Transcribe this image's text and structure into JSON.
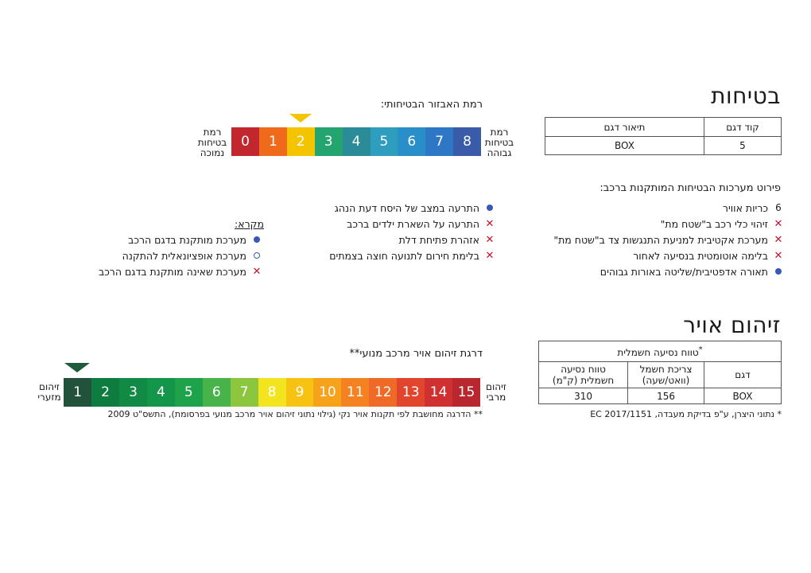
{
  "safety": {
    "title": "בטיחות",
    "model_table": {
      "col_code": "קוד דגם",
      "col_desc": "תיאור דגם",
      "code": "5",
      "desc": "BOX"
    },
    "scale_title": "רמת האבזור הבטיחותי:",
    "scale_high": "רמת\nבטיחות\nגבוהה",
    "scale_low": "רמת\nבטיחות\nנמוכה",
    "scale_values": [
      "8",
      "7",
      "6",
      "5",
      "4",
      "3",
      "2",
      "1",
      "0"
    ],
    "scale_colors": [
      "#3a5ba7",
      "#2e77c4",
      "#2a8ec9",
      "#2f9dbe",
      "#2b8b96",
      "#24a46e",
      "#f5c400",
      "#f06a1c",
      "#c1272d"
    ],
    "selected_level": 2,
    "features_title": "פירוט מערכות הבטיחות המותקנות ברכב:",
    "features_col1": [
      {
        "mark": "6",
        "text": "כריות אוויר"
      },
      {
        "mark": "x",
        "text": "זיהוי כלי רכב ב\"שטח מת\""
      },
      {
        "mark": "x",
        "text": "מערכת אקטיבית למניעת התנגשות צד ב\"שטח מת\""
      },
      {
        "mark": "x",
        "text": "בלימה אוטומטית בנסיעה לאחור"
      },
      {
        "mark": "dot",
        "text": "תאורה אדפטיבית/שליטה באורות גבוהים"
      }
    ],
    "features_col2": [
      {
        "mark": "dot",
        "text": "התרעה במצב של היסח דעת הנהג"
      },
      {
        "mark": "x",
        "text": "התרעה על השארת ילדים ברכב"
      },
      {
        "mark": "x",
        "text": "אזהרת פתיחת דלת"
      },
      {
        "mark": "x",
        "text": "בלימת חירום לתנועה חוצה בצמתים"
      }
    ],
    "legend": {
      "title": "מקרא:",
      "installed": "מערכת מותקנת בדגם הרכב",
      "optional": "מערכת אופציונאלית להתקנה",
      "not_installed": "מערכת שאינה מותקנת בדגם הרכב"
    }
  },
  "pollution": {
    "title": "זיהום אויר",
    "range_table": {
      "header": "טווח נסיעה חשמלית",
      "header_mark": "*",
      "col_model": "דגם",
      "col_consumption": "צריכת חשמל\n(וואט/שעה)",
      "col_range": "טווח נסיעה\nחשמלית (ק\"מ)",
      "model": "BOX",
      "consumption": "156",
      "range": "310"
    },
    "footnote_table": "* נתוני היצרן, ע\"פ בדיקת מעבדה, EC 2017/1151",
    "scale_title": "דרגת זיהום אויר מרכב מנועי**",
    "scale_max_label": "זיהום\nמרבי",
    "scale_min_label": "זיהום\nמזערי",
    "scale_values": [
      "15",
      "14",
      "13",
      "12",
      "11",
      "10",
      "9",
      "8",
      "7",
      "6",
      "5",
      "4",
      "3",
      "2",
      "1"
    ],
    "scale_colors": [
      "#b8262e",
      "#d0302f",
      "#e2452e",
      "#ef6a26",
      "#f58220",
      "#f7a21b",
      "#f7c212",
      "#f2e51f",
      "#8cc63f",
      "#48b34a",
      "#1fa34a",
      "#13954a",
      "#118a45",
      "#0e7c3e",
      "#22533a"
    ],
    "selected_level": 1,
    "footnote_scale": "** הדרגה מחושבת לפי תקנות אויר נקי (גילוי נתוני זיהום אויר מרכב מנועי בפרסומת), התשס\"ט 2009"
  }
}
